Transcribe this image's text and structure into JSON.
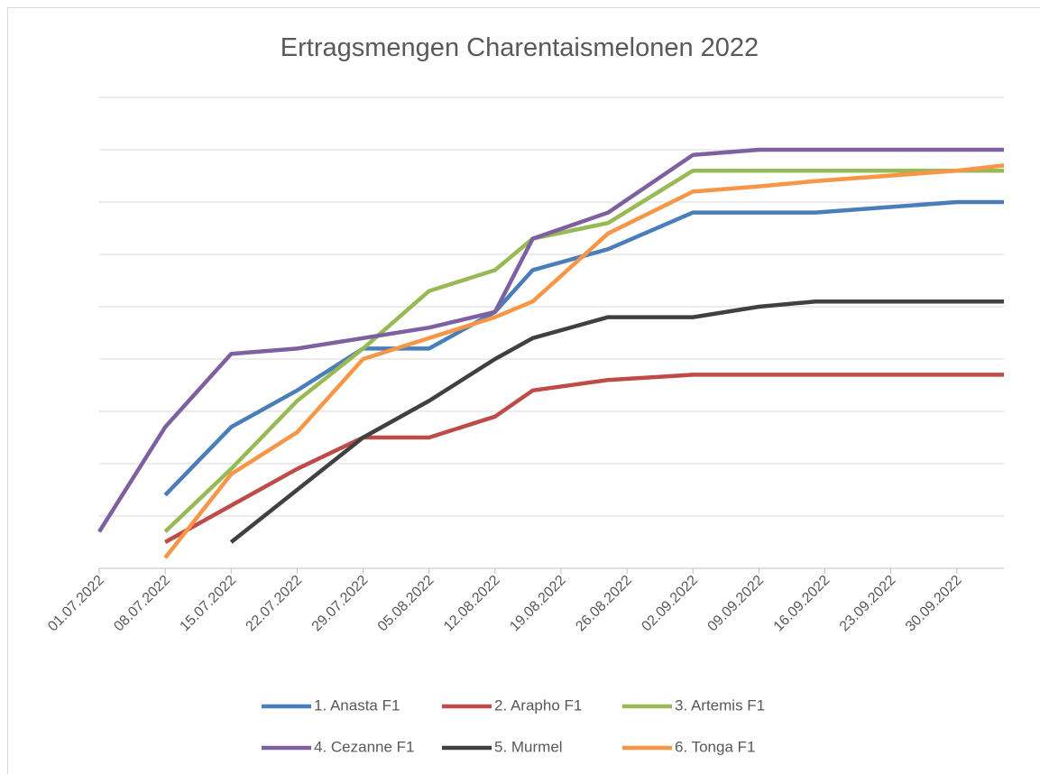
{
  "chart_data": {
    "type": "line",
    "title": "Ertragsmengen Charentaismelonen 2022",
    "x": [
      "2022-07-01",
      "2022-07-08",
      "2022-07-15",
      "2022-07-22",
      "2022-07-29",
      "2022-08-05",
      "2022-08-12",
      "2022-08-16",
      "2022-08-24",
      "2022-09-02",
      "2022-09-09",
      "2022-09-15",
      "2022-09-30",
      "2022-10-05"
    ],
    "series": [
      {
        "name": "1. Anasta F1",
        "color": "#4a7ebb",
        "values": [
          null,
          1.4,
          2.7,
          3.4,
          4.2,
          4.2,
          4.9,
          5.7,
          6.1,
          6.8,
          6.8,
          6.8,
          7.0,
          7.0
        ]
      },
      {
        "name": "2. Arapho F1",
        "color": "#be4b48",
        "values": [
          null,
          0.5,
          1.2,
          1.9,
          2.5,
          2.5,
          2.9,
          3.4,
          3.6,
          3.7,
          3.7,
          3.7,
          3.7,
          3.7
        ]
      },
      {
        "name": "3. Artemis F1",
        "color": "#98b954",
        "values": [
          null,
          0.7,
          1.9,
          3.2,
          4.2,
          5.3,
          5.7,
          6.3,
          6.6,
          7.6,
          7.6,
          7.6,
          7.6,
          7.6
        ]
      },
      {
        "name": "4. Cezanne F1",
        "color": "#7d60a0",
        "values": [
          0.7,
          2.7,
          4.1,
          4.2,
          4.4,
          4.6,
          4.9,
          6.3,
          6.8,
          7.9,
          8.0,
          8.0,
          8.0,
          8.0
        ]
      },
      {
        "name": "5. Murmel",
        "color": "#404040",
        "values": [
          null,
          null,
          0.5,
          1.5,
          2.5,
          3.2,
          4.0,
          4.4,
          4.8,
          4.8,
          5.0,
          5.1,
          5.1,
          5.1
        ]
      },
      {
        "name": "6. Tonga F1",
        "color": "#f79646",
        "values": [
          null,
          0.2,
          1.8,
          2.6,
          4.0,
          4.4,
          4.8,
          5.1,
          6.4,
          7.2,
          7.3,
          7.4,
          7.6,
          7.7
        ]
      }
    ],
    "xlim": [
      "2022-07-01",
      "2022-10-05"
    ],
    "xticks": [
      {
        "value": "2022-07-01",
        "label": "01.07.2022"
      },
      {
        "value": "2022-07-08",
        "label": "08.07.2022"
      },
      {
        "value": "2022-07-15",
        "label": "15.07.2022"
      },
      {
        "value": "2022-07-22",
        "label": "22.07.2022"
      },
      {
        "value": "2022-07-29",
        "label": "29.07.2022"
      },
      {
        "value": "2022-08-05",
        "label": "05.08.2022"
      },
      {
        "value": "2022-08-12",
        "label": "12.08.2022"
      },
      {
        "value": "2022-08-19",
        "label": "19.08.2022"
      },
      {
        "value": "2022-08-26",
        "label": "26.08.2022"
      },
      {
        "value": "2022-09-02",
        "label": "02.09.2022"
      },
      {
        "value": "2022-09-09",
        "label": "09.09.2022"
      },
      {
        "value": "2022-09-16",
        "label": "16.09.2022"
      },
      {
        "value": "2022-09-23",
        "label": "23.09.2022"
      },
      {
        "value": "2022-09-30",
        "label": "30.09.2022"
      }
    ],
    "ylim": [
      0,
      9
    ],
    "yticks": [
      1,
      2,
      3,
      4,
      5,
      6,
      7,
      8,
      9
    ],
    "grid": true,
    "legend": "bottom"
  }
}
